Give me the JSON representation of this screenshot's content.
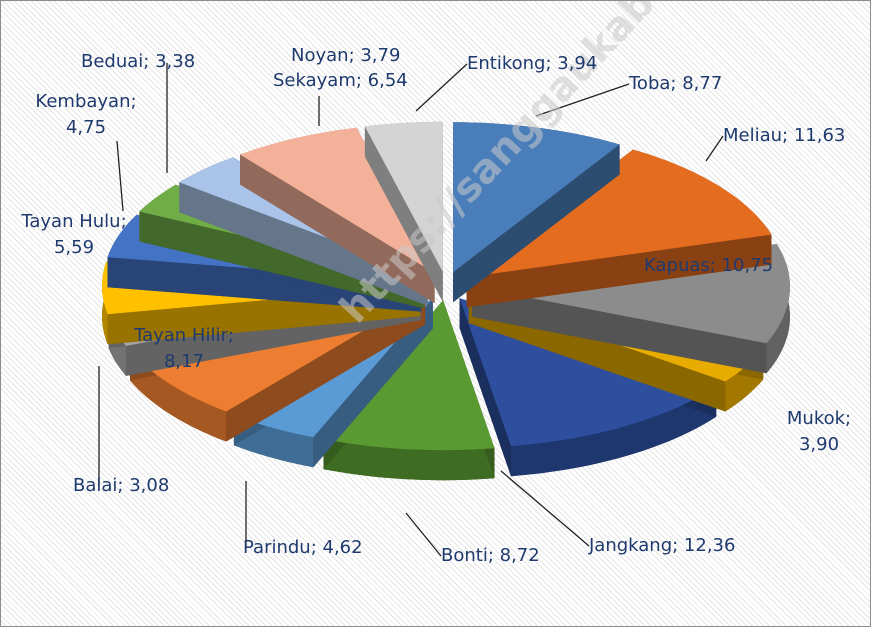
{
  "chart_data": {
    "type": "pie3d",
    "value_labels": [
      "Toba; 8,77",
      "Meliau; 11,63",
      "Kapuas; 10,75",
      "Mukok; 3,90",
      "Jangkang; 12,36",
      "Bonti; 8,72",
      "Parindu; 4,62",
      "Tayan Hilir; 8,17",
      "Balai; 3,08",
      "Tayan Hulu; 5,59",
      "Kembayan; 4,75",
      "Beduai; 3,38",
      "Noyan; 3,79",
      "Sekayam; 6,54",
      "Entikong; 3,94"
    ],
    "values": [
      8.77,
      11.63,
      10.75,
      3.9,
      12.36,
      8.72,
      4.62,
      8.17,
      3.08,
      5.59,
      4.75,
      3.38,
      3.79,
      6.54,
      3.94
    ],
    "colors": [
      "#4a7ebb",
      "#e46c1f",
      "#8c8c8c",
      "#e8ac00",
      "#2d4f9e",
      "#5a9a32",
      "#5b9bd5",
      "#ed7d31",
      "#a5a5a5",
      "#ffc000",
      "#4472c4",
      "#70ad47",
      "#a9c4e8",
      "#f4b19a",
      "#d4d4d4"
    ],
    "watermark": "https://sanggaukab.bps.go.id"
  }
}
